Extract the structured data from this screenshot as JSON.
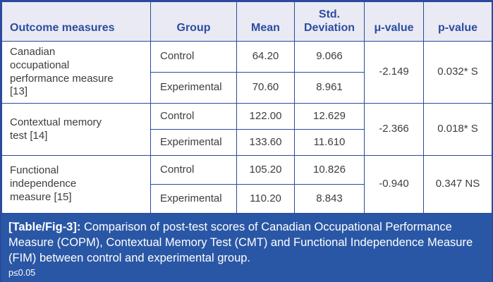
{
  "table": {
    "headers": {
      "outcome": "Outcome measures",
      "group": "Group",
      "mean": "Mean",
      "sd": "Std. Deviation",
      "mu": "μ-value",
      "p": "p-value"
    },
    "rows": [
      {
        "measure": "Canadian occupational performance measure [13]",
        "groups": [
          {
            "group": "Control",
            "mean": "64.20",
            "sd": "9.066"
          },
          {
            "group": "Experimental",
            "mean": "70.60",
            "sd": "8.961"
          }
        ],
        "mu": "-2.149",
        "p": "0.032* S"
      },
      {
        "measure": "Contextual memory test [14]",
        "groups": [
          {
            "group": "Control",
            "mean": "122.00",
            "sd": "12.629"
          },
          {
            "group": "Experimental",
            "mean": "133.60",
            "sd": "11.610"
          }
        ],
        "mu": "-2.366",
        "p": "0.018* S"
      },
      {
        "measure": "Functional independence measure [15]",
        "groups": [
          {
            "group": "Control",
            "mean": "105.20",
            "sd": "10.826"
          },
          {
            "group": "Experimental",
            "mean": "110.20",
            "sd": "8.843"
          }
        ],
        "mu": "-0.940",
        "p": "0.347 NS"
      }
    ]
  },
  "caption": {
    "label": "[Table/Fig-3]:",
    "text": "Comparison of post-test scores of Canadian Occupational Performance Measure (COPM), Contextual Memory Test (CMT) and Functional Independence Measure (FIM) between control and experimental group.",
    "note": "p≤0.05"
  },
  "colors": {
    "border_blue": "#2b4a9e",
    "header_text_blue": "#2d4da0",
    "header_bg": "#e9eaf4",
    "caption_bg": "#2a57a5",
    "body_text": "#3d3d3d"
  }
}
